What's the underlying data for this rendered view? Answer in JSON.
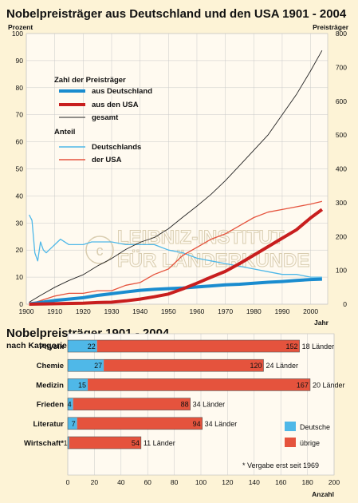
{
  "colors": {
    "background": "#fdf3d6",
    "plot_bg": "#fffaf0",
    "germany_thick": "#1a8ccf",
    "usa_thick": "#c81e1e",
    "total": "#222222",
    "germany_share": "#4fb8e8",
    "usa_share": "#e5533d",
    "bar_germany": "#4fb8e8",
    "bar_other": "#e5533d",
    "grid": "#c9c9c9"
  },
  "watermark": {
    "line1": "LEIBNIZ-INSTITUT",
    "line2": "FÜR LÄNDERKUNDE"
  },
  "chart_data": [
    {
      "type": "line",
      "title": "Nobelpreisträger aus Deutschland und den USA 1901 - 2004",
      "left_axis_label": "Prozent",
      "right_axis_label": "Preisträger",
      "xlabel": "Jahr",
      "xlim": [
        1900,
        2006
      ],
      "ylim_left": [
        0,
        100
      ],
      "ylim_right": [
        0,
        800
      ],
      "x_ticks": [
        1900,
        1910,
        1920,
        1930,
        1940,
        1950,
        1960,
        1970,
        1980,
        1990,
        2000
      ],
      "y_ticks_left": [
        0,
        10,
        20,
        30,
        40,
        50,
        60,
        70,
        80,
        90,
        100
      ],
      "y_ticks_right": [
        0,
        100,
        200,
        300,
        400,
        500,
        600,
        700,
        800
      ],
      "grid": true,
      "legend": {
        "group1_title": "Zahl der Preisträger",
        "group1_items": [
          "aus Deutschland",
          "aus den USA",
          "gesamt"
        ],
        "group2_title": "Anteil",
        "group2_items": [
          "Deutschlands",
          "der USA"
        ]
      },
      "series": [
        {
          "name": "aus Deutschland",
          "axis": "right",
          "x": [
            1901,
            1905,
            1910,
            1915,
            1920,
            1925,
            1930,
            1935,
            1940,
            1945,
            1950,
            1955,
            1960,
            1965,
            1970,
            1975,
            1980,
            1985,
            1990,
            1995,
            2000,
            2004
          ],
          "values": [
            1,
            5,
            11,
            15,
            19,
            26,
            31,
            36,
            41,
            44,
            46,
            48,
            51,
            54,
            57,
            59,
            62,
            65,
            67,
            70,
            73,
            74
          ]
        },
        {
          "name": "aus den USA",
          "axis": "right",
          "x": [
            1901,
            1907,
            1912,
            1920,
            1925,
            1930,
            1935,
            1940,
            1945,
            1950,
            1955,
            1960,
            1965,
            1970,
            1975,
            1980,
            1985,
            1990,
            1995,
            2000,
            2004
          ],
          "values": [
            0,
            1,
            2,
            3,
            5,
            6,
            10,
            15,
            22,
            30,
            45,
            62,
            80,
            97,
            120,
            145,
            170,
            195,
            220,
            255,
            280
          ]
        },
        {
          "name": "gesamt",
          "axis": "right",
          "x": [
            1901,
            1905,
            1910,
            1915,
            1920,
            1925,
            1930,
            1935,
            1940,
            1945,
            1950,
            1955,
            1960,
            1965,
            1970,
            1975,
            1980,
            1985,
            1990,
            1995,
            2000,
            2004
          ],
          "values": [
            6,
            26,
            50,
            70,
            87,
            113,
            135,
            162,
            183,
            197,
            223,
            257,
            290,
            325,
            365,
            410,
            455,
            500,
            560,
            620,
            690,
            750
          ]
        },
        {
          "name": "Deutschlands",
          "axis": "left",
          "x": [
            1901,
            1902,
            1903,
            1904,
            1905,
            1906,
            1907,
            1908,
            1909,
            1910,
            1912,
            1915,
            1918,
            1920,
            1923,
            1925,
            1928,
            1930,
            1935,
            1940,
            1945,
            1950,
            1955,
            1960,
            1965,
            1970,
            1975,
            1980,
            1985,
            1990,
            1995,
            2000,
            2004
          ],
          "values": [
            33,
            31,
            19,
            16,
            23,
            20,
            19,
            20,
            21,
            22,
            24,
            22,
            22,
            22,
            23,
            23,
            23,
            23,
            22,
            22,
            22,
            20,
            19,
            17,
            16,
            15,
            14,
            13,
            12,
            11,
            11,
            10,
            10
          ]
        },
        {
          "name": "der USA",
          "axis": "left",
          "x": [
            1901,
            1907,
            1910,
            1915,
            1920,
            1925,
            1930,
            1935,
            1940,
            1945,
            1950,
            1955,
            1960,
            1965,
            1970,
            1975,
            1980,
            1985,
            1990,
            1995,
            2000,
            2004
          ],
          "values": [
            0,
            2,
            3,
            4,
            4,
            5,
            5,
            7,
            8,
            11,
            13,
            18,
            21,
            24,
            26,
            29,
            32,
            34,
            35,
            36,
            37,
            38
          ]
        }
      ]
    },
    {
      "type": "bar",
      "title": "Nobelpreisträger 1901 - 2004",
      "subtitle": "nach Kategorien",
      "xlabel": "Anzahl",
      "xlim": [
        0,
        200
      ],
      "x_ticks": [
        0,
        20,
        40,
        60,
        80,
        100,
        120,
        140,
        160,
        180,
        200
      ],
      "grid": true,
      "categories": [
        "Physik",
        "Chemie",
        "Medizin",
        "Frieden",
        "Literatur",
        "Wirtschaft*"
      ],
      "series": [
        {
          "name": "Deutsche",
          "values": [
            22,
            27,
            15,
            4,
            7,
            1
          ]
        },
        {
          "name": "übrige",
          "values": [
            152,
            120,
            167,
            88,
            94,
            54
          ]
        }
      ],
      "country_labels": [
        "18 Länder",
        "24 Länder",
        "20 Länder",
        "34 Länder",
        "34 Länder",
        "11 Länder"
      ],
      "legend": [
        "Deutsche",
        "übrige"
      ],
      "footnote": "* Vergabe erst seit 1969"
    }
  ]
}
